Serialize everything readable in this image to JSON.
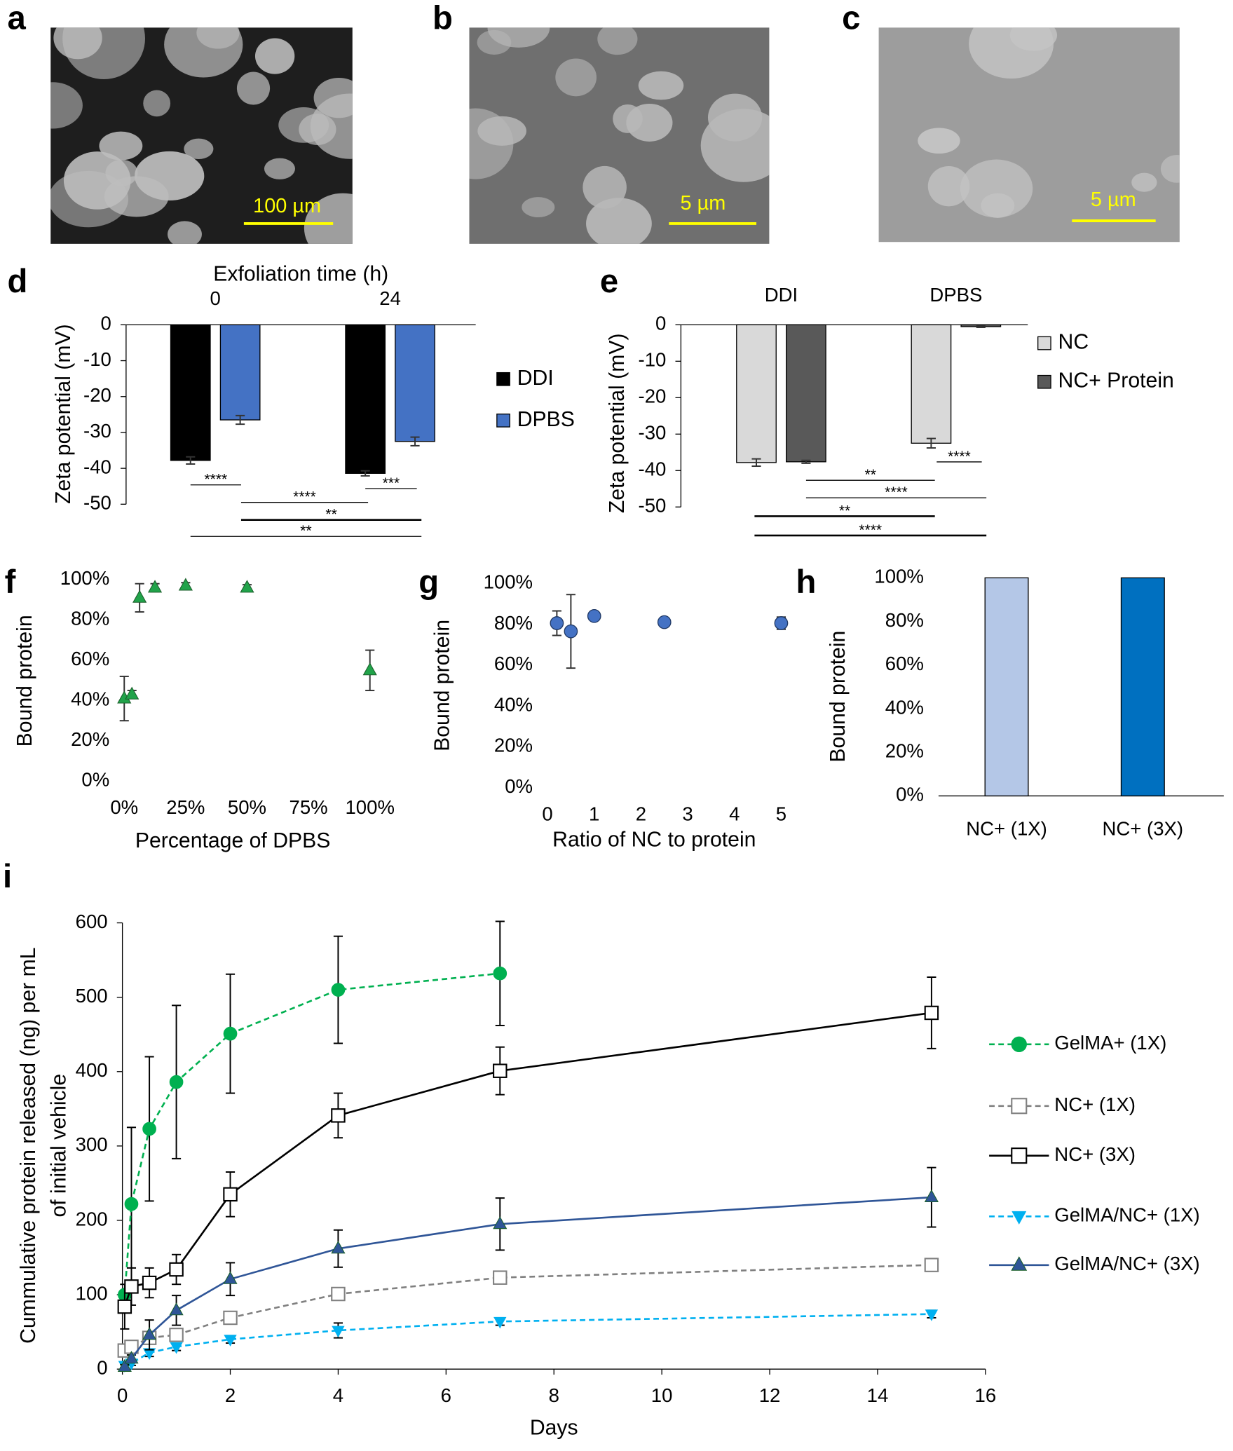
{
  "images": [
    {
      "panel": "a",
      "scale_bar": "100 µm"
    },
    {
      "panel": "b",
      "scale_bar": "5 µm"
    },
    {
      "panel": "c",
      "scale_bar": "5 µm"
    }
  ],
  "chart_data": [
    {
      "panel": "d",
      "type": "bar",
      "xlabel": "Exfoliation time (h)",
      "ylabel": "Zeta potential (mV)",
      "categories": [
        "0",
        "24"
      ],
      "series": [
        {
          "name": "DDI",
          "color": "#000000",
          "values": [
            -37.8,
            -41.4
          ],
          "errors": [
            1.0,
            0.7
          ]
        },
        {
          "name": "DPBS",
          "color": "#4472c4",
          "values": [
            -26.5,
            -32.5
          ],
          "errors": [
            1.2,
            1.2
          ]
        }
      ],
      "ylim": [
        -50,
        0
      ],
      "yticks": [
        0,
        -10,
        -20,
        -30,
        -40,
        -50
      ],
      "annotations": [
        "****",
        "***",
        "****",
        "**",
        "**"
      ]
    },
    {
      "panel": "e",
      "type": "bar",
      "ylabel": "Zeta potential (mV)",
      "categories": [
        "DDI",
        "DPBS"
      ],
      "series": [
        {
          "name": "NC",
          "color": "#d9d9d9",
          "values": [
            -37.8,
            -32.5
          ],
          "errors": [
            1.0,
            1.3
          ]
        },
        {
          "name": "NC+ Protein",
          "color": "#595959",
          "values": [
            -37.6,
            -0.5
          ],
          "errors": [
            0.4,
            0.2
          ]
        }
      ],
      "ylim": [
        -50,
        0
      ],
      "yticks": [
        0,
        -10,
        -20,
        -30,
        -40,
        -50
      ],
      "annotations": [
        "****",
        "**",
        "****",
        "**",
        "****"
      ]
    },
    {
      "panel": "f",
      "type": "scatter",
      "xlabel": "Percentage of DPBS",
      "ylabel": "Bound protein",
      "x": [
        0,
        3.125,
        6.25,
        12.5,
        25,
        50,
        100
      ],
      "values": [
        41,
        43,
        91,
        96,
        97,
        96,
        55
      ],
      "errors": [
        11,
        2,
        7,
        2,
        1.5,
        1.5,
        10
      ],
      "color": "#21a34a",
      "marker": "triangle-up",
      "xlim": [
        0,
        100
      ],
      "xticks": [
        {
          "value": 0,
          "label": "0%"
        },
        {
          "value": 25,
          "label": "25%"
        },
        {
          "value": 50,
          "label": "50%"
        },
        {
          "value": 75,
          "label": "75%"
        },
        {
          "value": 100,
          "label": "100%"
        }
      ],
      "ylim": [
        0,
        100
      ],
      "yticks": [
        {
          "value": 0,
          "label": "0%"
        },
        {
          "value": 20,
          "label": "20%"
        },
        {
          "value": 40,
          "label": "40%"
        },
        {
          "value": 60,
          "label": "60%"
        },
        {
          "value": 80,
          "label": "80%"
        },
        {
          "value": 100,
          "label": "100%"
        }
      ]
    },
    {
      "panel": "g",
      "type": "scatter",
      "xlabel": "Ratio of NC to protein",
      "ylabel": "Bound protein",
      "x": [
        0.2,
        0.5,
        1,
        2.5,
        5
      ],
      "values": [
        80.5,
        76.5,
        84,
        81,
        80.5
      ],
      "errors": [
        6,
        18,
        1,
        1.5,
        3
      ],
      "color": "#4472c4",
      "marker": "circle",
      "xlim": [
        0,
        5
      ],
      "xticks": [
        0,
        1,
        2,
        3,
        4,
        5
      ],
      "ylim": [
        0,
        100
      ],
      "yticks": [
        {
          "value": 0,
          "label": "0%"
        },
        {
          "value": 20,
          "label": "20%"
        },
        {
          "value": 40,
          "label": "40%"
        },
        {
          "value": 60,
          "label": "60%"
        },
        {
          "value": 80,
          "label": "80%"
        },
        {
          "value": 100,
          "label": "100%"
        }
      ]
    },
    {
      "panel": "h",
      "type": "bar",
      "ylabel": "Bound protein",
      "categories": [
        "NC+ (1X)",
        "NC+ (3X)"
      ],
      "values": [
        100,
        100
      ],
      "colors": [
        "#b4c7e7",
        "#0070c0"
      ],
      "ylim": [
        0,
        100
      ],
      "yticks": [
        {
          "value": 0,
          "label": "0%"
        },
        {
          "value": 20,
          "label": "20%"
        },
        {
          "value": 40,
          "label": "40%"
        },
        {
          "value": 60,
          "label": "60%"
        },
        {
          "value": 80,
          "label": "80%"
        },
        {
          "value": 100,
          "label": "100%"
        }
      ]
    },
    {
      "panel": "i",
      "type": "line",
      "xlabel": "Days",
      "ylabel": [
        "Cummulative protein released (ng) per mL",
        "of initial vehicle"
      ],
      "x": [
        0.042,
        0.167,
        0.5,
        1,
        2,
        4,
        7,
        15
      ],
      "series": [
        {
          "name": "GelMA+ (1X)",
          "color": "#00b050",
          "marker": "circle",
          "dashed": true,
          "values": [
            100,
            222,
            323,
            386,
            451,
            510,
            532,
            null
          ],
          "errors": [
            5,
            103,
            97,
            103,
            80,
            72,
            70,
            null
          ]
        },
        {
          "name": "NC+ (1X)",
          "color": "#808080",
          "marker": "open-square",
          "dashed": true,
          "values": [
            25,
            30,
            42,
            46,
            69,
            101,
            123,
            140
          ],
          "errors": [
            3,
            3,
            5,
            5,
            5,
            5,
            5,
            5
          ]
        },
        {
          "name": "NC+ (3X)",
          "color": "#000000",
          "marker": "open-square",
          "dashed": false,
          "values": [
            84,
            111,
            116,
            134,
            235,
            341,
            401,
            479
          ],
          "errors": [
            30,
            25,
            20,
            20,
            30,
            30,
            32,
            48
          ]
        },
        {
          "name": "GelMA/NC+ (1X)",
          "color": "#00b0f0",
          "marker": "triangle-down",
          "dashed": true,
          "values": [
            5,
            8,
            22,
            30,
            40,
            52,
            64,
            74
          ],
          "errors": [
            3,
            3,
            5,
            5,
            5,
            10,
            5,
            5
          ]
        },
        {
          "name": "GelMA/NC+ (3X)",
          "color": "#2f5597",
          "marker": "triangle-up",
          "dashed": false,
          "values": [
            3,
            14,
            46,
            79,
            121,
            162,
            195,
            231
          ],
          "errors": [
            3,
            5,
            20,
            20,
            22,
            25,
            35,
            40
          ]
        }
      ],
      "xlim": [
        0,
        16
      ],
      "xticks": [
        0,
        2,
        4,
        6,
        8,
        10,
        12,
        14,
        16
      ],
      "ylim": [
        0,
        600
      ],
      "yticks": [
        0,
        100,
        200,
        300,
        400,
        500,
        600
      ]
    }
  ]
}
